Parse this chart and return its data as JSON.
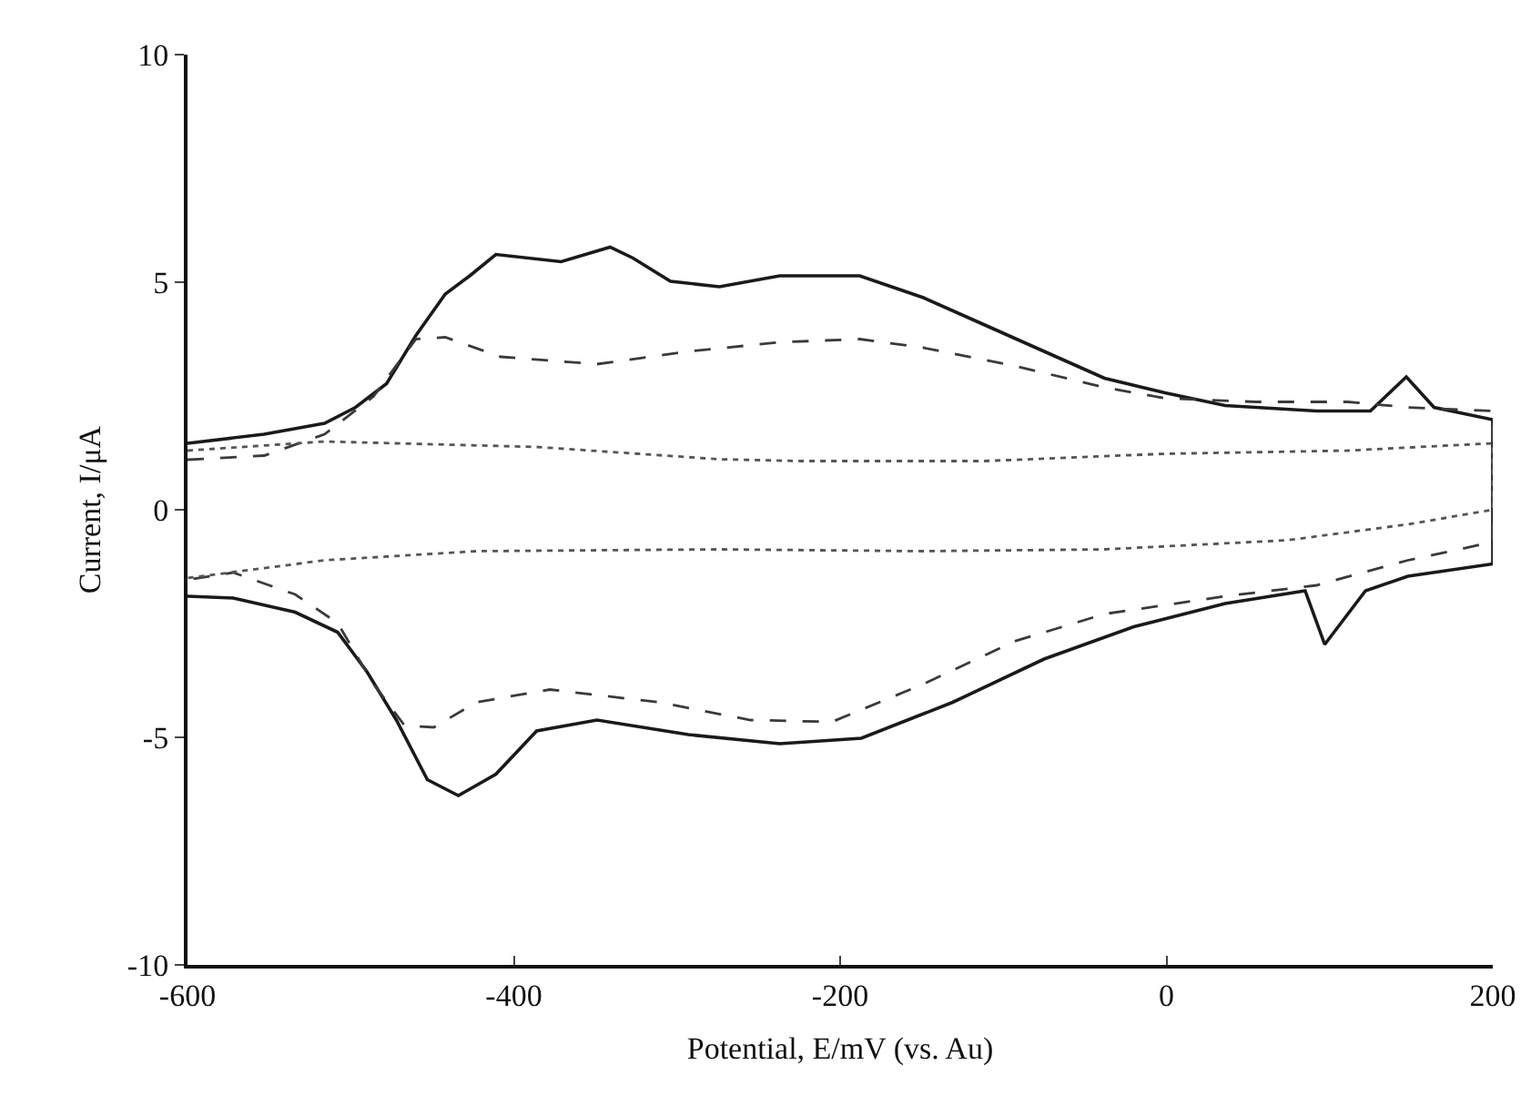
{
  "chart_data": {
    "type": "line",
    "xlabel": "Potential, E/mV (vs. Au)",
    "ylabel": "Current, I/μA",
    "xlim": [
      -600,
      200
    ],
    "xticks": [
      -600,
      -400,
      -200,
      0,
      200
    ],
    "ylim": [
      -10,
      10
    ],
    "yticks": [
      -10,
      -5,
      0,
      5,
      10
    ],
    "series": [
      {
        "color": "#1a1a1a",
        "line_style": "solid",
        "x": [
          -600,
          -553,
          -516,
          -497,
          -478,
          -460,
          -442,
          -427,
          -411,
          -371,
          -341,
          -327,
          -304,
          -274,
          -237,
          -188,
          -149,
          -112,
          -75,
          -38,
          -1,
          36,
          92,
          125,
          147,
          164,
          200,
          200,
          148,
          122,
          97,
          85,
          36,
          -20,
          -75,
          -131,
          -187,
          -237,
          -293,
          -349,
          -386,
          -411,
          -434,
          -453,
          -472,
          -490,
          -508,
          -534,
          -572,
          -600
        ],
        "values": [
          1.46,
          1.66,
          1.9,
          2.25,
          2.77,
          3.83,
          4.74,
          5.14,
          5.61,
          5.45,
          5.77,
          5.53,
          5.02,
          4.9,
          5.14,
          5.14,
          4.66,
          4.07,
          3.48,
          2.89,
          2.57,
          2.29,
          2.17,
          2.17,
          2.92,
          2.25,
          1.98,
          -1.19,
          -1.46,
          -1.78,
          -2.96,
          -1.78,
          -2.06,
          -2.57,
          -3.28,
          -4.23,
          -5.02,
          -5.14,
          -4.94,
          -4.62,
          -4.86,
          -5.81,
          -6.28,
          -5.93,
          -4.62,
          -3.56,
          -2.69,
          -2.25,
          -1.94,
          -1.9
        ]
      },
      {
        "color": "#3a3a3a",
        "line_style": "dashed",
        "x": [
          -600,
          -553,
          -516,
          -486,
          -460,
          -442,
          -408,
          -349,
          -293,
          -237,
          -188,
          -149,
          -93,
          -38,
          -1,
          55,
          111,
          148,
          200,
          200,
          148,
          92,
          36,
          -38,
          -93,
          -149,
          -205,
          -255,
          -311,
          -378,
          -423,
          -449,
          -467,
          -486,
          -508,
          -534,
          -572,
          -600
        ],
        "values": [
          1.1,
          1.19,
          1.66,
          2.49,
          3.75,
          3.79,
          3.36,
          3.2,
          3.48,
          3.68,
          3.75,
          3.56,
          3.16,
          2.69,
          2.45,
          2.37,
          2.37,
          2.25,
          2.17,
          -0.71,
          -1.11,
          -1.66,
          -1.9,
          -2.29,
          -2.89,
          -3.83,
          -4.66,
          -4.62,
          -4.23,
          -3.95,
          -4.23,
          -4.78,
          -4.74,
          -3.83,
          -2.49,
          -1.86,
          -1.38,
          -1.54
        ]
      },
      {
        "color": "#555555",
        "line_style": "dotted",
        "x": [
          -600,
          -516,
          -386,
          -274,
          -224,
          -112,
          -1,
          111,
          200,
          200,
          148,
          74,
          -38,
          -149,
          -274,
          -423,
          -516,
          -600
        ],
        "values": [
          1.3,
          1.5,
          1.38,
          1.11,
          1.07,
          1.07,
          1.23,
          1.3,
          1.46,
          0,
          -0.32,
          -0.67,
          -0.87,
          -0.91,
          -0.87,
          -0.91,
          -1.11,
          -1.5
        ]
      }
    ]
  }
}
